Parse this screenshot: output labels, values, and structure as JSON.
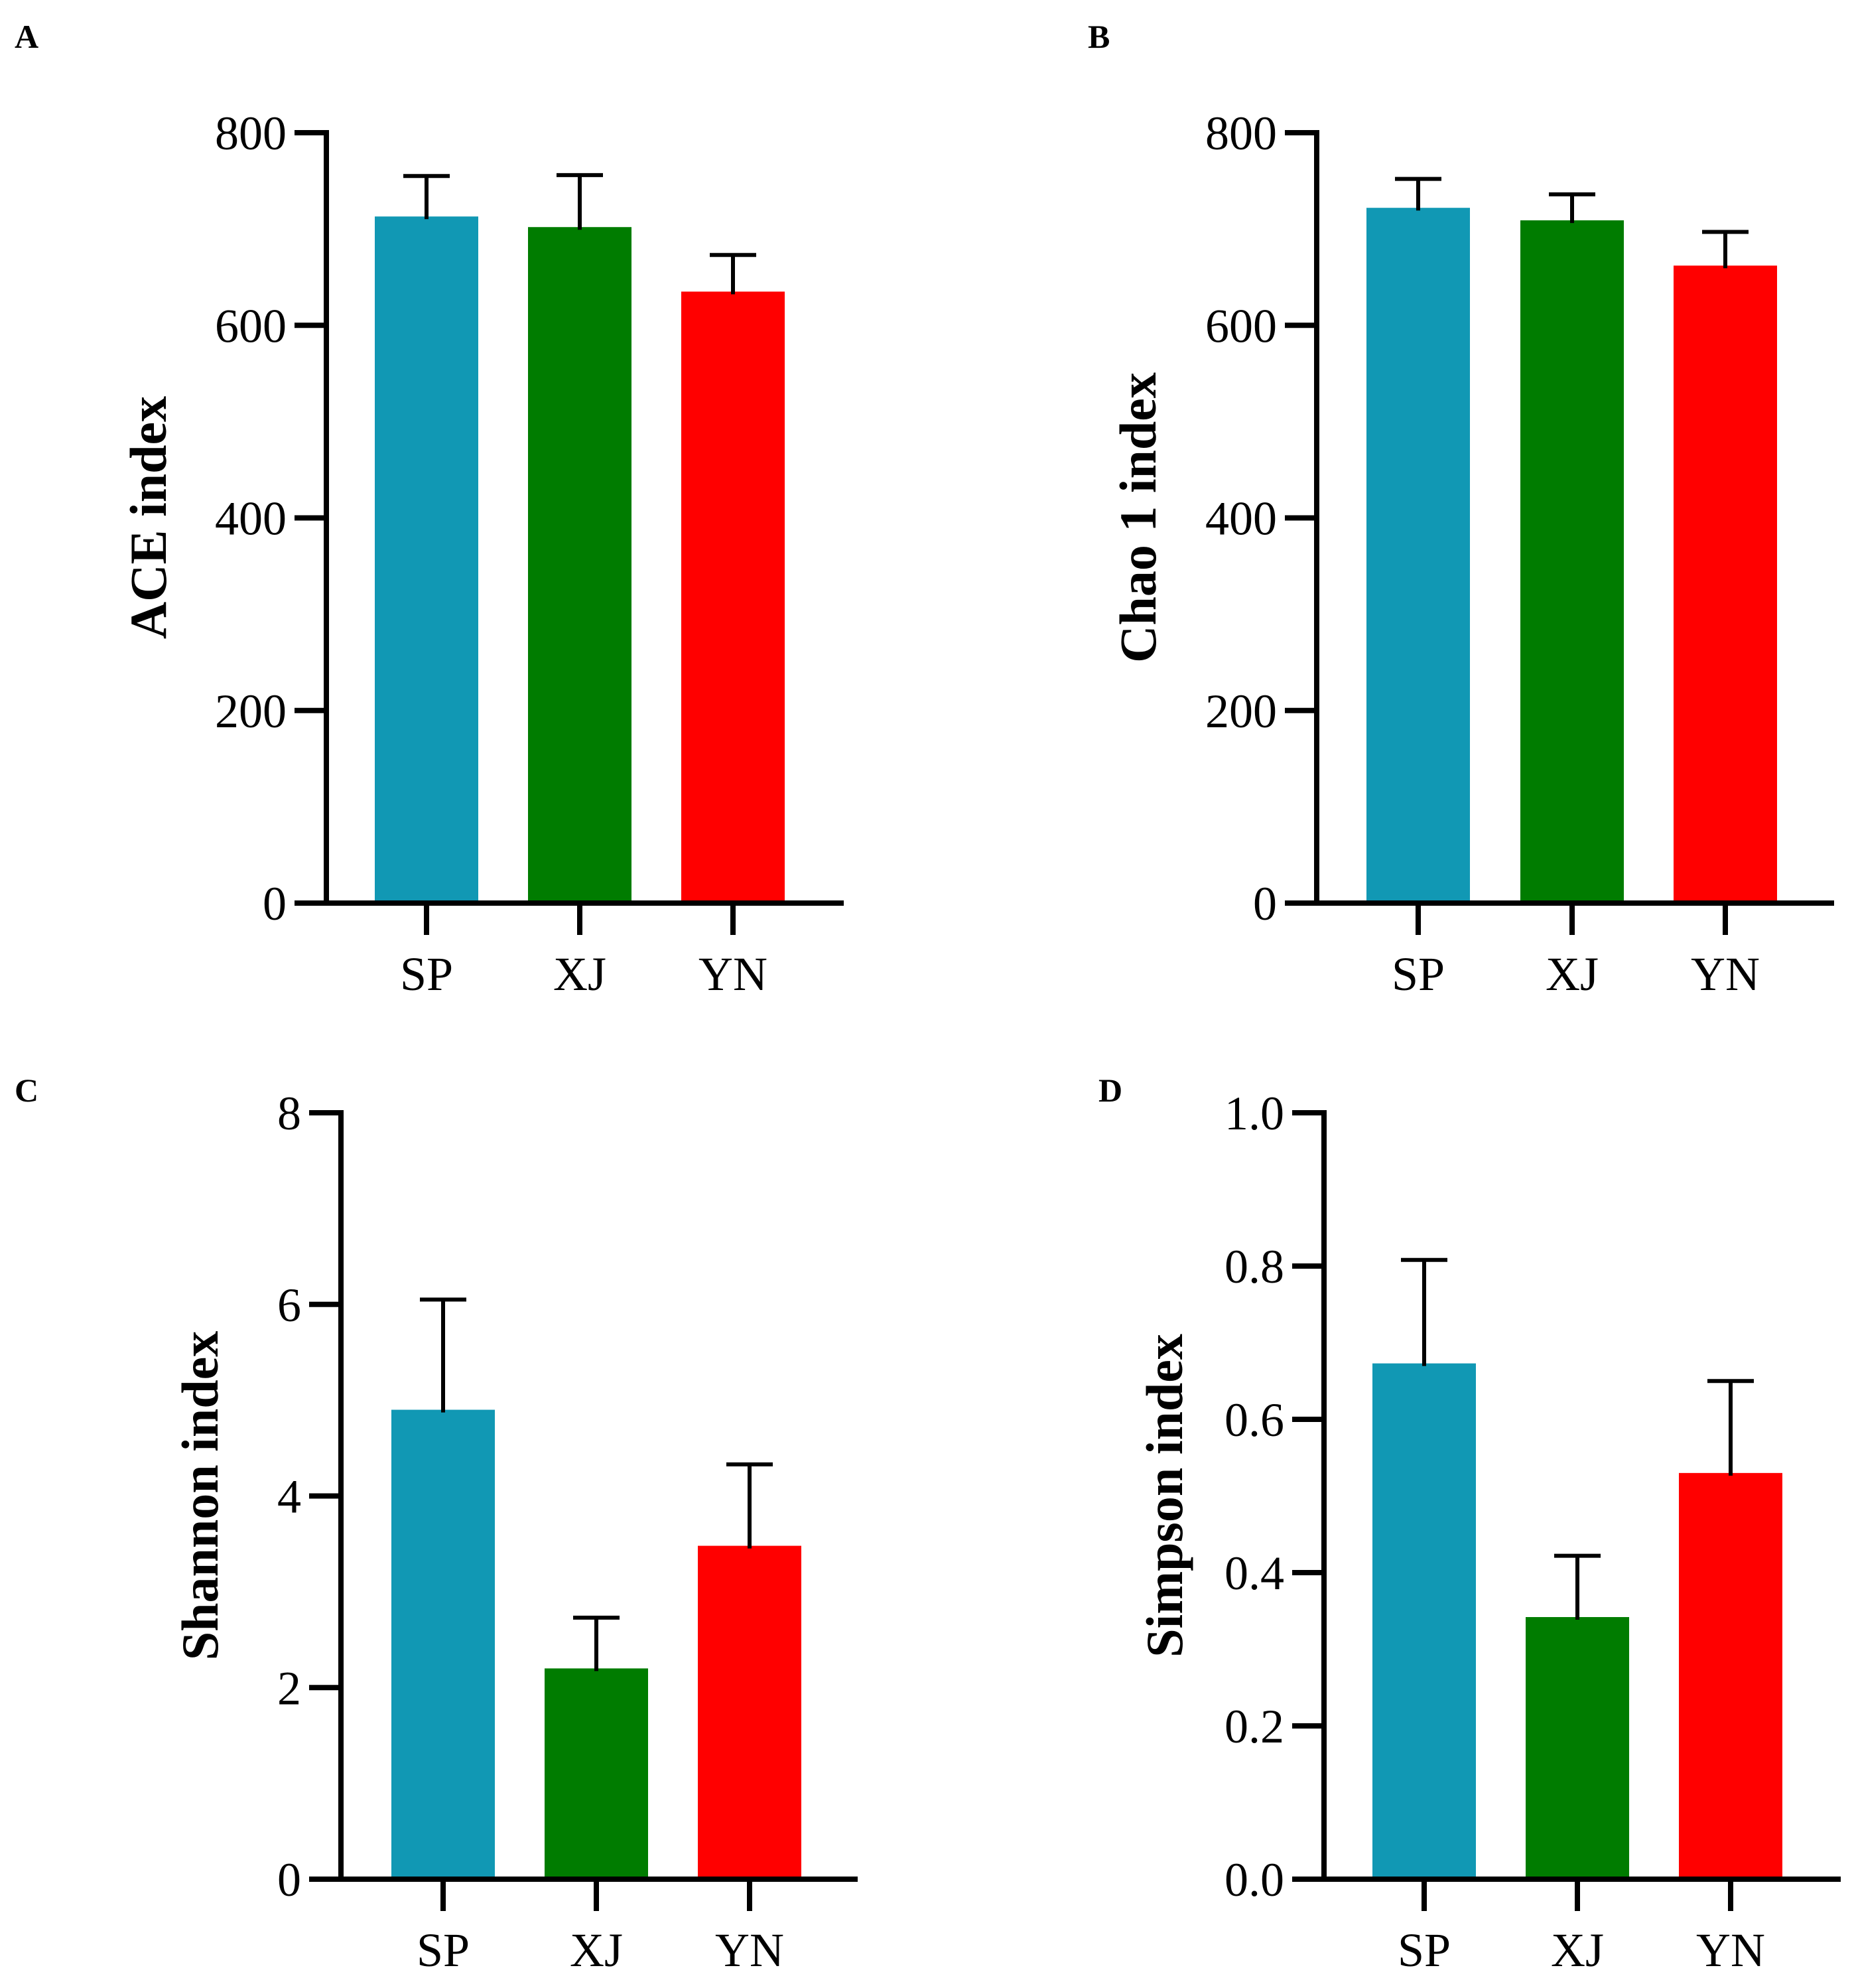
{
  "chart_data": [
    {
      "panel": "A",
      "type": "bar",
      "ylabel": "ACE index",
      "categories": [
        "SP",
        "XJ",
        "YN"
      ],
      "values": [
        713,
        702,
        635
      ],
      "errors": [
        42,
        54,
        38
      ],
      "colors": [
        "#1198b4",
        "#007c00",
        "#ff0000"
      ],
      "ylim": [
        0,
        800
      ],
      "yticks": [
        0,
        200,
        400,
        600,
        800
      ],
      "ytick_labels": [
        "0",
        "200",
        "400",
        "600",
        "800"
      ]
    },
    {
      "panel": "B",
      "type": "bar",
      "ylabel": "Chao 1 index",
      "categories": [
        "SP",
        "XJ",
        "YN"
      ],
      "values": [
        722,
        709,
        662
      ],
      "errors": [
        30,
        27,
        35
      ],
      "colors": [
        "#1198b4",
        "#007c00",
        "#ff0000"
      ],
      "ylim": [
        0,
        800
      ],
      "yticks": [
        0,
        200,
        400,
        600,
        800
      ],
      "ytick_labels": [
        "0",
        "200",
        "400",
        "600",
        "800"
      ]
    },
    {
      "panel": "C",
      "type": "bar",
      "ylabel": "Shannon index",
      "categories": [
        "SP",
        "XJ",
        "YN"
      ],
      "values": [
        4.9,
        2.2,
        3.48
      ],
      "errors": [
        1.15,
        0.53,
        0.85
      ],
      "colors": [
        "#1198b4",
        "#007c00",
        "#ff0000"
      ],
      "ylim": [
        0,
        8
      ],
      "yticks": [
        0,
        2,
        4,
        6,
        8
      ],
      "ytick_labels": [
        "0",
        "2",
        "4",
        "6",
        "8"
      ]
    },
    {
      "panel": "D",
      "type": "bar",
      "ylabel": "Simpson index",
      "categories": [
        "SP",
        "XJ",
        "YN"
      ],
      "values": [
        0.673,
        0.342,
        0.53
      ],
      "errors": [
        0.135,
        0.08,
        0.12
      ],
      "colors": [
        "#1198b4",
        "#007c00",
        "#ff0000"
      ],
      "ylim": [
        0,
        1.0
      ],
      "yticks": [
        0,
        0.2,
        0.4,
        0.6,
        0.8,
        1.0
      ],
      "ytick_labels": [
        "0.0",
        "0.2",
        "0.4",
        "0.6",
        "0.8",
        "1.0"
      ]
    }
  ]
}
